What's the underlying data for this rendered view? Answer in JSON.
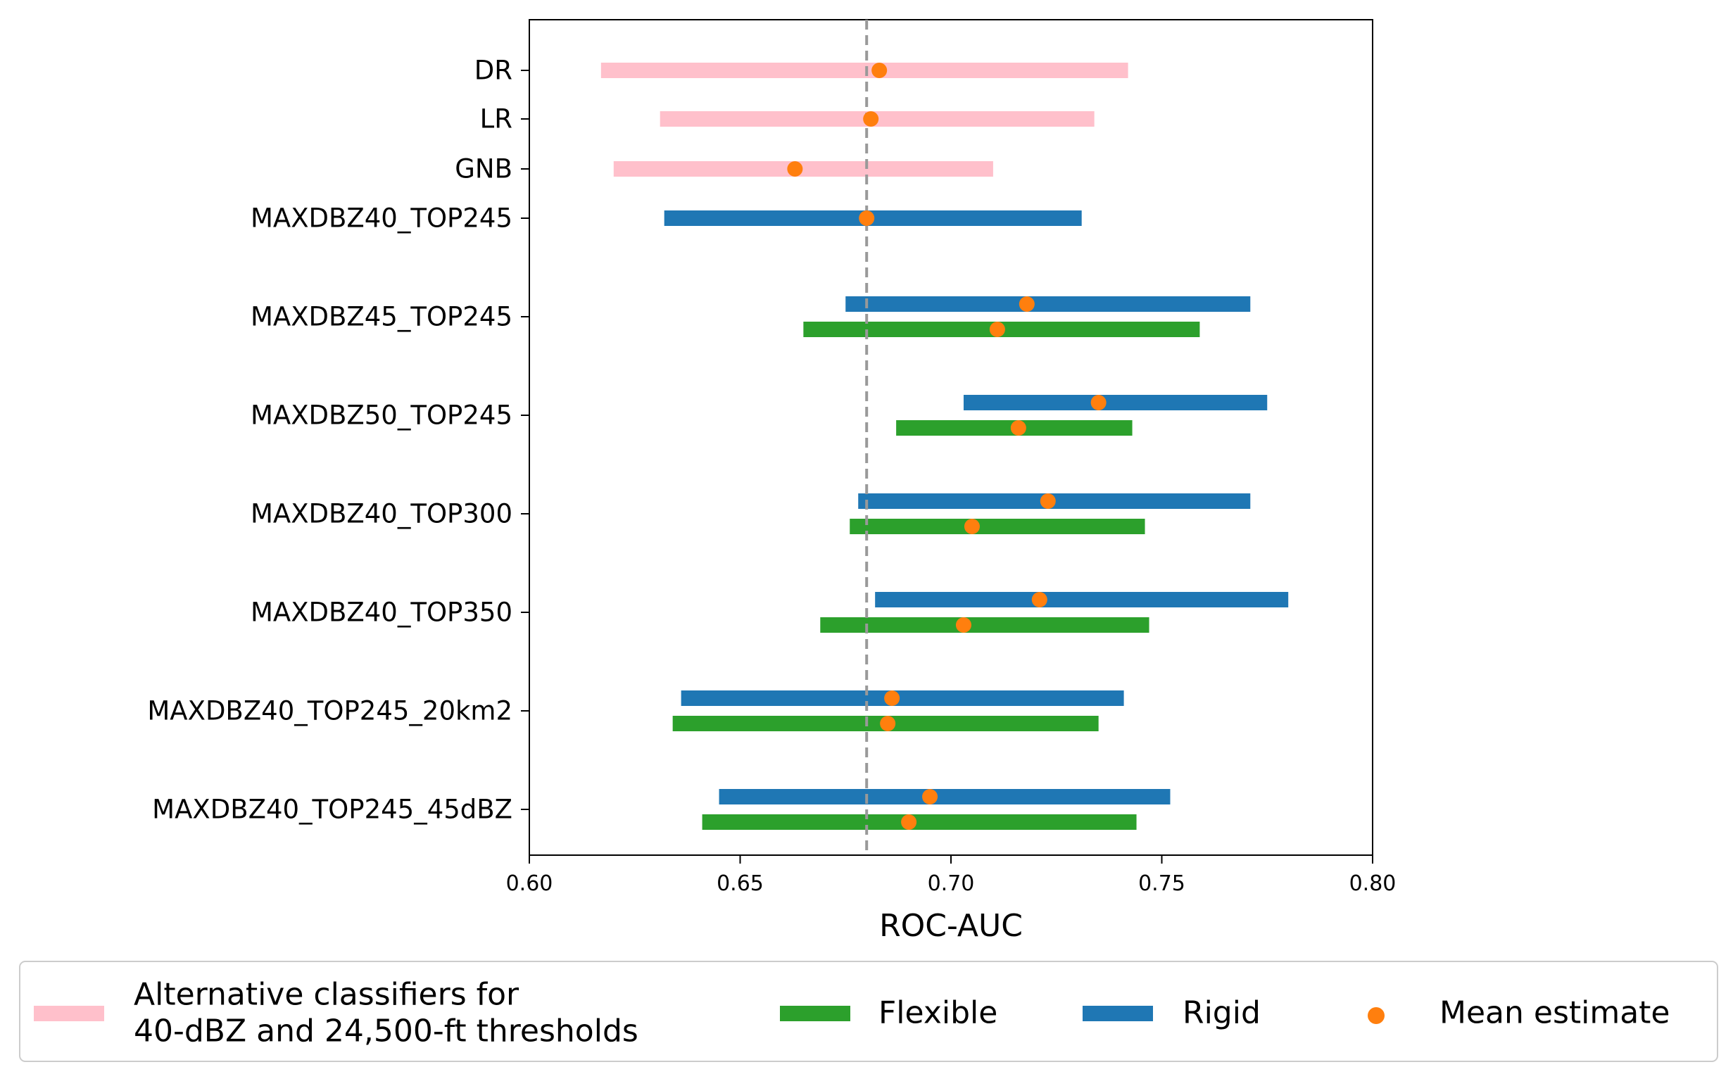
{
  "chart_data": {
    "type": "interval",
    "xlabel": "ROC-AUC",
    "xlim": [
      0.6,
      0.8
    ],
    "xticks": [
      "0.60",
      "0.65",
      "0.70",
      "0.75",
      "0.80"
    ],
    "reference_line": 0.68,
    "colors": {
      "alternative": "#ffc0cb",
      "flexible": "#2ca02c",
      "rigid": "#1f77b4",
      "mean": "#ff7f0e",
      "reference": "#999999"
    },
    "categories": [
      "DR",
      "LR",
      "GNB",
      "MAXDBZ40_TOP245",
      "MAXDBZ45_TOP245",
      "MAXDBZ50_TOP245",
      "MAXDBZ40_TOP300",
      "MAXDBZ40_TOP350",
      "MAXDBZ40_TOP245_20km2",
      "MAXDBZ40_TOP245_45dBZ"
    ],
    "intervals": [
      {
        "category": "DR",
        "series": "alternative",
        "low": 0.617,
        "high": 0.742,
        "mean": 0.683
      },
      {
        "category": "LR",
        "series": "alternative",
        "low": 0.631,
        "high": 0.734,
        "mean": 0.681
      },
      {
        "category": "GNB",
        "series": "alternative",
        "low": 0.62,
        "high": 0.71,
        "mean": 0.663
      },
      {
        "category": "MAXDBZ40_TOP245",
        "series": "rigid",
        "low": 0.632,
        "high": 0.731,
        "mean": 0.68
      },
      {
        "category": "MAXDBZ45_TOP245",
        "series": "rigid",
        "low": 0.675,
        "high": 0.771,
        "mean": 0.718
      },
      {
        "category": "MAXDBZ45_TOP245",
        "series": "flexible",
        "low": 0.665,
        "high": 0.759,
        "mean": 0.711
      },
      {
        "category": "MAXDBZ50_TOP245",
        "series": "rigid",
        "low": 0.703,
        "high": 0.775,
        "mean": 0.735
      },
      {
        "category": "MAXDBZ50_TOP245",
        "series": "flexible",
        "low": 0.687,
        "high": 0.743,
        "mean": 0.716
      },
      {
        "category": "MAXDBZ40_TOP300",
        "series": "rigid",
        "low": 0.678,
        "high": 0.771,
        "mean": 0.723
      },
      {
        "category": "MAXDBZ40_TOP300",
        "series": "flexible",
        "low": 0.676,
        "high": 0.746,
        "mean": 0.705
      },
      {
        "category": "MAXDBZ40_TOP350",
        "series": "rigid",
        "low": 0.682,
        "high": 0.78,
        "mean": 0.721
      },
      {
        "category": "MAXDBZ40_TOP350",
        "series": "flexible",
        "low": 0.669,
        "high": 0.747,
        "mean": 0.703
      },
      {
        "category": "MAXDBZ40_TOP245_20km2",
        "series": "rigid",
        "low": 0.636,
        "high": 0.741,
        "mean": 0.686
      },
      {
        "category": "MAXDBZ40_TOP245_20km2",
        "series": "flexible",
        "low": 0.634,
        "high": 0.735,
        "mean": 0.685
      },
      {
        "category": "MAXDBZ40_TOP245_45dBZ",
        "series": "rigid",
        "low": 0.645,
        "high": 0.752,
        "mean": 0.695
      },
      {
        "category": "MAXDBZ40_TOP245_45dBZ",
        "series": "flexible",
        "low": 0.641,
        "high": 0.744,
        "mean": 0.69
      }
    ],
    "legend": {
      "placement": "bottom",
      "entries": [
        {
          "series": "alternative",
          "lines": [
            "Alternative classifiers for",
            "40-dBZ and 24,500-ft thresholds"
          ]
        },
        {
          "series": "flexible",
          "lines": [
            "Flexible"
          ]
        },
        {
          "series": "rigid",
          "lines": [
            "Rigid"
          ]
        },
        {
          "series": "mean",
          "lines": [
            "Mean estimate"
          ]
        }
      ]
    }
  }
}
